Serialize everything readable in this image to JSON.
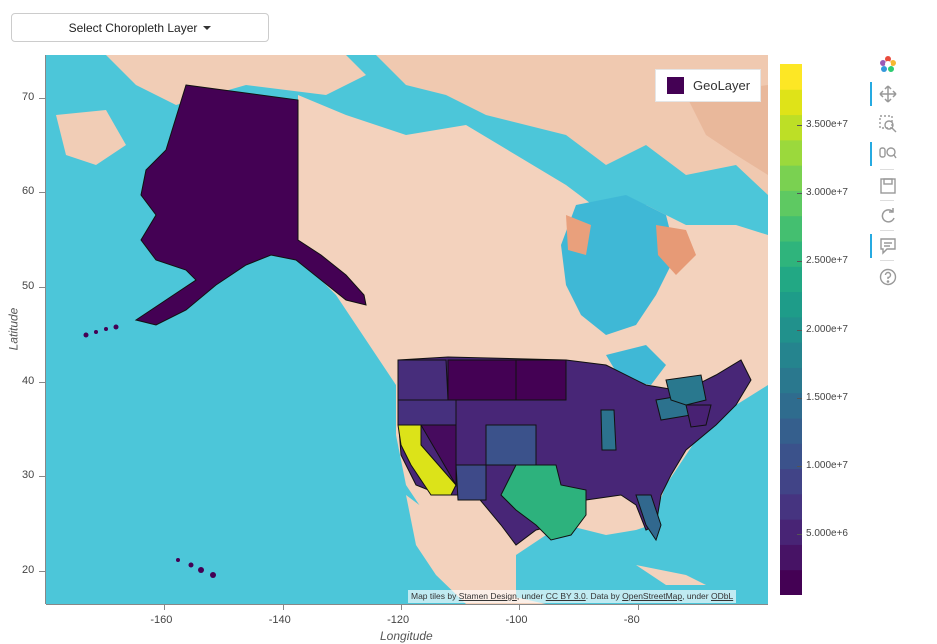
{
  "dropdown": {
    "label": "Select Choropleth Layer"
  },
  "plot": {
    "xlabel": "Longitude",
    "ylabel": "Latitude",
    "x_ticks": [
      "-160",
      "-140",
      "-120",
      "-100",
      "-80"
    ],
    "y_ticks": [
      "70",
      "60",
      "50",
      "40",
      "30",
      "20"
    ],
    "x_range": [
      -180,
      -58
    ],
    "y_range": [
      16.5,
      74.5
    ]
  },
  "legend": {
    "label": "GeoLayer",
    "color": "#440154"
  },
  "colorbar": {
    "labels": [
      "3.500e+7",
      "3.000e+7",
      "2.500e+7",
      "2.000e+7",
      "1.500e+7",
      "1.000e+7",
      "5.000e+6"
    ],
    "values": [
      35000000,
      30000000,
      25000000,
      20000000,
      15000000,
      10000000,
      5000000
    ],
    "range": [
      500000,
      39500000
    ],
    "palette": "viridis"
  },
  "attribution": {
    "prefix": "Map tiles by",
    "link1": "Stamen Design",
    "mid1": ", under",
    "link2": "CC BY 3.0",
    "mid2": ". Data by",
    "link3": "OpenStreetMap",
    "mid3": ", under",
    "link4": "ODbL"
  },
  "toolbar": {
    "tools": [
      "bokeh-logo-icon",
      "pan-icon",
      "box-zoom-icon",
      "wheel-zoom-icon",
      "save-icon",
      "reset-icon",
      "hover-icon",
      "help-icon"
    ]
  },
  "colors": {
    "ocean": "#4cc6d9",
    "land": "#f3d2bd",
    "state_border": "#111111"
  }
}
